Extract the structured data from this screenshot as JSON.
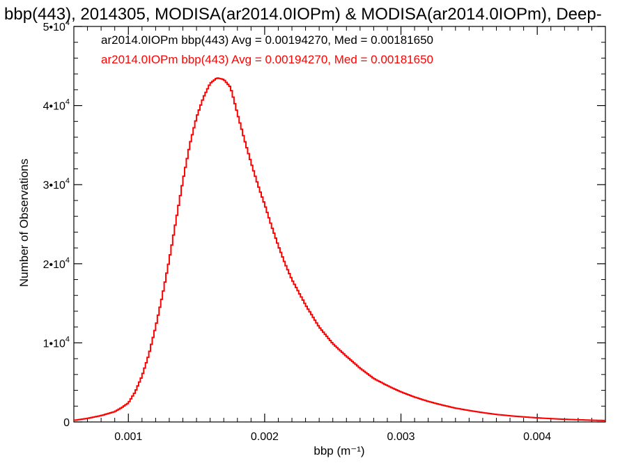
{
  "chart_data": {
    "type": "histogram",
    "title": "bbp(443), 2014305, MODISA(ar2014.0IOPm) & MODISA(ar2014.0IOPm), Deep-",
    "xlabel": "bbp (m⁻¹)",
    "ylabel": "Number of Observations",
    "xlim": [
      0.0006,
      0.0045
    ],
    "ylim": [
      0,
      50000
    ],
    "x_ticks": [
      {
        "value": 0.001,
        "label": "0.001"
      },
      {
        "value": 0.002,
        "label": "0.002"
      },
      {
        "value": 0.003,
        "label": "0.003"
      },
      {
        "value": 0.004,
        "label": "0.004"
      }
    ],
    "y_ticks": [
      {
        "value": 0,
        "mantissa": "0",
        "exp": ""
      },
      {
        "value": 10000,
        "mantissa": "1•10",
        "exp": "4"
      },
      {
        "value": 20000,
        "mantissa": "2•10",
        "exp": "4"
      },
      {
        "value": 30000,
        "mantissa": "3•10",
        "exp": "4"
      },
      {
        "value": 40000,
        "mantissa": "4•10",
        "exp": "4"
      },
      {
        "value": 50000,
        "mantissa": "5•10",
        "exp": "4"
      }
    ],
    "legend": [
      {
        "text": "ar2014.0IOPm bbp(443) Avg = 0.00194270, Med = 0.00181650",
        "color": "#000000"
      },
      {
        "text": "ar2014.0IOPm bbp(443) Avg = 0.00194270, Med = 0.00181650",
        "color": "#ff0000"
      }
    ],
    "series": [
      {
        "color": "#ff0000",
        "x": [
          0.0006,
          0.0007,
          0.0008,
          0.0009,
          0.00095,
          0.001,
          0.00105,
          0.0011,
          0.00115,
          0.0012,
          0.00125,
          0.0013,
          0.00135,
          0.0014,
          0.00145,
          0.0015,
          0.00155,
          0.0016,
          0.00165,
          0.0017,
          0.00175,
          0.0018,
          0.00185,
          0.0019,
          0.00195,
          0.002,
          0.00205,
          0.0021,
          0.00215,
          0.0022,
          0.0023,
          0.0024,
          0.0025,
          0.0026,
          0.0027,
          0.0028,
          0.0029,
          0.003,
          0.0031,
          0.0032,
          0.0033,
          0.0034,
          0.0035,
          0.0036,
          0.0037,
          0.0038,
          0.0039,
          0.004,
          0.0041,
          0.0042,
          0.0043,
          0.0044,
          0.0045
        ],
        "y": [
          200,
          450,
          800,
          1300,
          1800,
          2400,
          3800,
          5800,
          8500,
          12000,
          16000,
          20500,
          25500,
          30500,
          35000,
          38500,
          41000,
          42800,
          43500,
          43300,
          42300,
          39000,
          35800,
          32800,
          30000,
          27500,
          24800,
          22300,
          20000,
          18000,
          14800,
          12000,
          9900,
          8300,
          6800,
          5500,
          4600,
          3800,
          3150,
          2600,
          2150,
          1750,
          1450,
          1180,
          950,
          780,
          640,
          520,
          420,
          340,
          280,
          220,
          180
        ]
      }
    ]
  }
}
